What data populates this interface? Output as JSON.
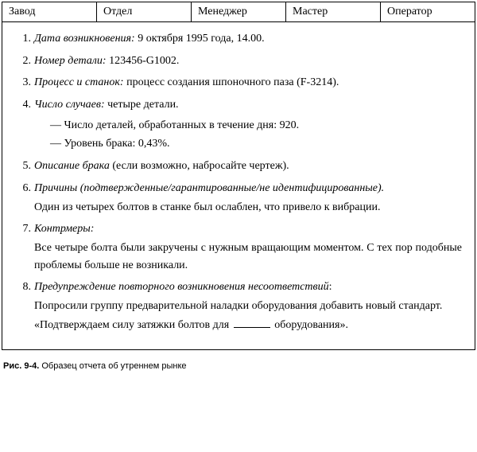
{
  "header": {
    "columns": [
      "Завод",
      "Отдел",
      "Менеджер",
      "Мастер",
      "Оператор"
    ]
  },
  "items": {
    "i1": {
      "label": "Дата возникновения:",
      "value": "9 октября 1995 года, 14.00."
    },
    "i2": {
      "label": "Номер детали:",
      "value": "123456-G1002."
    },
    "i3": {
      "label": "Процесс и станок:",
      "value": "процесс создания шпоночного паза (F-3214)."
    },
    "i4": {
      "label": "Число случаев:",
      "value": "четыре детали.",
      "sub1": "— Число деталей, обработанных в течение дня: 920.",
      "sub2": "— Уровень брака: 0,43%."
    },
    "i5": {
      "label": "Описание брака",
      "value": "(если возможно, набросайте чертеж)."
    },
    "i6": {
      "label": "Причины (подтвержденные/гарантированные/не идентифицированные).",
      "body": "Один из четырех болтов в станке был ослаблен, что привело к вибрации."
    },
    "i7": {
      "label": "Контрмеры:",
      "body": "Все четыре болта были закручены с нужным вращающим моментом. С тех пор подобные проблемы больше не возникали."
    },
    "i8": {
      "label": "Предупреждение повторного возникновения несоответствий",
      "body": "Попросили группу предварительной наладки оборудования добавить новый стандарт.",
      "quote_pre": "«Подтверждаем силу затяжки болтов для",
      "quote_post": "оборудования»."
    }
  },
  "caption": {
    "fig": "Рис. 9-4.",
    "text": "Образец отчета об утреннем рынке"
  },
  "style": {
    "text_color": "#000000",
    "background": "#ffffff",
    "border_color": "#000000",
    "body_fontsize": 14,
    "caption_fontsize": 11
  }
}
